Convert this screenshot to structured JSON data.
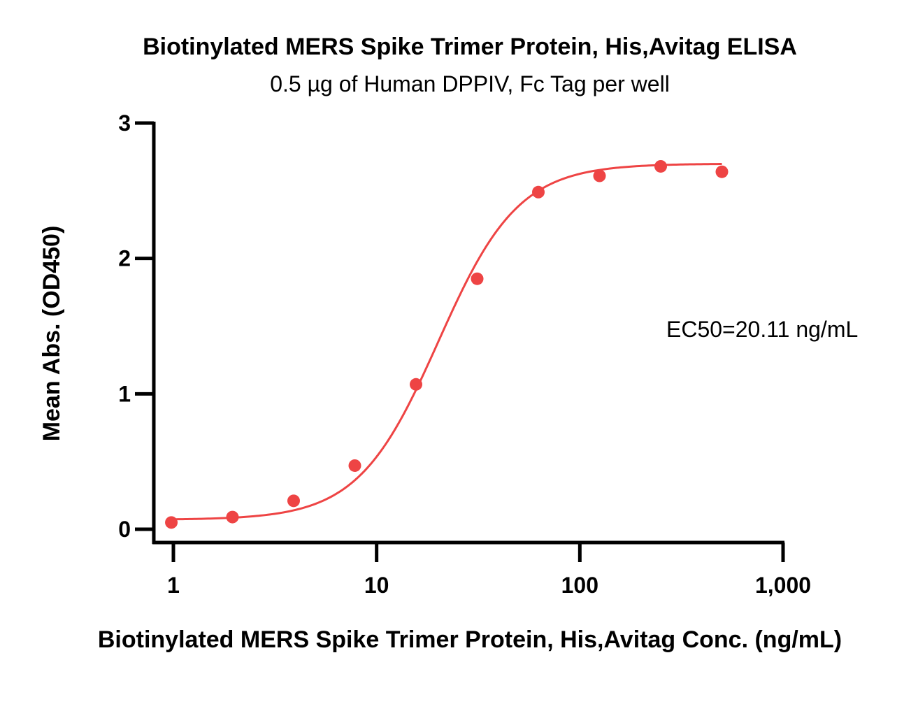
{
  "chart_data": {
    "type": "scatter",
    "title": "Biotinylated MERS Spike Trimer Protein, His,Avitag ELISA",
    "subtitle": "0.5 µg of Human DPPIV, Fc Tag per well",
    "xlabel": "Biotinylated MERS Spike Trimer Protein, His,Avitag Conc. (ng/mL)",
    "ylabel": "Mean Abs. (OD450)",
    "x_scale": "log",
    "xlim": [
      1,
      1000
    ],
    "ylim": [
      0,
      3
    ],
    "x_ticks": [
      {
        "value": 1,
        "label": "1"
      },
      {
        "value": 10,
        "label": "10"
      },
      {
        "value": 100,
        "label": "100"
      },
      {
        "value": 1000,
        "label": "1,000"
      }
    ],
    "y_ticks": [
      {
        "value": 0,
        "label": "0"
      },
      {
        "value": 1,
        "label": "1"
      },
      {
        "value": 2,
        "label": "2"
      },
      {
        "value": 3,
        "label": "3"
      }
    ],
    "grid": false,
    "color": "#ee4444",
    "series": [
      {
        "x": [
          0.977,
          1.953,
          3.906,
          7.813,
          15.625,
          31.25,
          62.5,
          125,
          250,
          500
        ],
        "y": [
          0.05,
          0.09,
          0.21,
          0.47,
          1.07,
          1.85,
          2.49,
          2.61,
          2.68,
          2.64
        ]
      }
    ],
    "fit": {
      "model": "4PL",
      "bottom": 0.07,
      "top": 2.7,
      "ec50": 20.11,
      "hill": 2.2
    },
    "annotations": [
      {
        "text": "EC50=20.11 ng/mL"
      }
    ]
  }
}
